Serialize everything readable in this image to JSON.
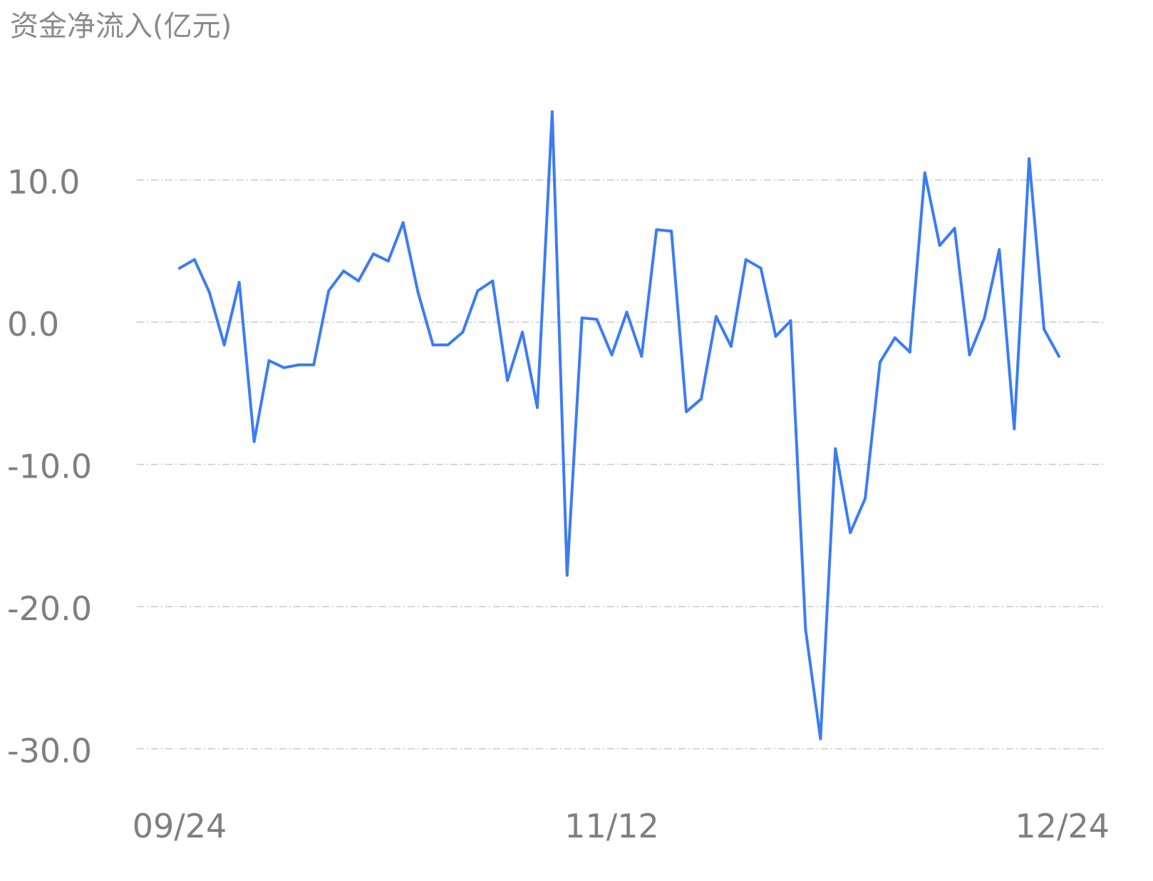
{
  "chart_data": {
    "type": "line",
    "title": "资金净流入(亿元)",
    "xlabel": "",
    "ylabel": "",
    "ylim": [
      -30,
      10
    ],
    "yticks": [
      "10.0",
      "0.0",
      "-10.0",
      "-20.0",
      "-30.0"
    ],
    "ytick_values": [
      10,
      0,
      -10,
      -20,
      -30
    ],
    "xtick_labels": [
      "09/24",
      "11/12",
      "12/24"
    ],
    "xtick_indices": [
      0,
      29,
      59
    ],
    "grid": true,
    "line_color": "#3b7cf5",
    "grid_color": "#c8c8c8",
    "series": [
      {
        "values": [
          3.8,
          4.4,
          2.1,
          -1.6,
          2.8,
          -8.4,
          -2.7,
          -3.2,
          -3.0,
          -3.0,
          2.2,
          3.6,
          2.9,
          4.8,
          4.3,
          7.0,
          2.1,
          -1.6,
          -1.6,
          -0.7,
          2.2,
          2.9,
          -4.1,
          -0.7,
          -6.0,
          14.8,
          -17.8,
          0.3,
          0.2,
          -2.3,
          0.7,
          -2.4,
          6.5,
          6.4,
          -6.3,
          -5.4,
          0.4,
          -1.7,
          4.4,
          3.8,
          -1.0,
          0.1,
          -21.6,
          -29.3,
          -8.9,
          -14.8,
          -12.4,
          -2.8,
          -1.1,
          -2.1,
          10.5,
          5.4,
          6.6,
          -2.3,
          0.3,
          5.1,
          -7.5,
          11.5,
          -0.5,
          -2.4
        ]
      }
    ]
  }
}
